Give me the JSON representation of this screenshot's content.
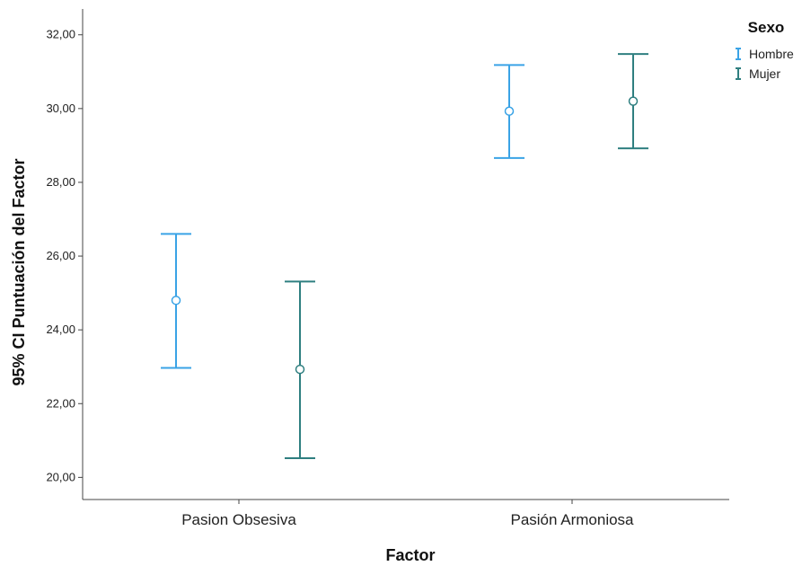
{
  "chart_data": {
    "type": "errorbar",
    "title": "",
    "xlabel": "Factor",
    "ylabel": "95% CI Puntuación del Factor",
    "categories": [
      "Pasion Obsesiva",
      "Pasión Armoniosa"
    ],
    "ylim": [
      19.4,
      32.7
    ],
    "yticks": [
      20,
      22,
      24,
      26,
      28,
      30,
      32
    ],
    "ytick_labels": [
      "20,00",
      "22,00",
      "24,00",
      "26,00",
      "28,00",
      "30,00",
      "32,00"
    ],
    "grid": false,
    "legend": {
      "title": "Sexo",
      "position": "top-right"
    },
    "series": [
      {
        "name": "Hombre",
        "color": "#3aa3e6",
        "mean": [
          24.8,
          29.93
        ],
        "lower": [
          22.97,
          28.66
        ],
        "upper": [
          26.6,
          31.18
        ]
      },
      {
        "name": "Mujer",
        "color": "#2f7f80",
        "mean": [
          22.93,
          30.2
        ],
        "lower": [
          20.52,
          28.92
        ],
        "upper": [
          25.31,
          31.48
        ]
      }
    ]
  }
}
